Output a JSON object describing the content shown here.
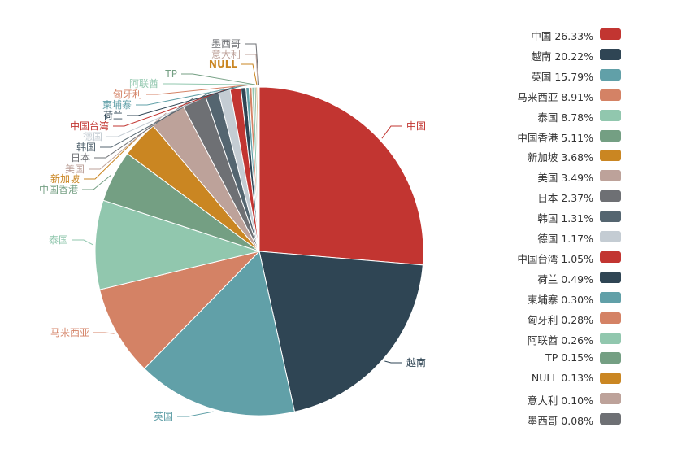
{
  "chart_data": {
    "type": "pie",
    "title": "",
    "slices": [
      {
        "name": "中国",
        "value": 26.33,
        "label": "中国 26.33%",
        "color": "#c23531"
      },
      {
        "name": "越南",
        "value": 20.22,
        "label": "越南 20.22%",
        "color": "#2f4554"
      },
      {
        "name": "英国",
        "value": 15.79,
        "label": "英国 15.79%",
        "color": "#61a0a8"
      },
      {
        "name": "马来西亚",
        "value": 8.91,
        "label": "马来西亚 8.91%",
        "color": "#d48265"
      },
      {
        "name": "泰国",
        "value": 8.78,
        "label": "泰国 8.78%",
        "color": "#91c7ae"
      },
      {
        "name": "中国香港",
        "value": 5.11,
        "label": "中国香港 5.11%",
        "color": "#749f83"
      },
      {
        "name": "新加坡",
        "value": 3.68,
        "label": "新加坡 3.68%",
        "color": "#ca8622"
      },
      {
        "name": "美国",
        "value": 3.49,
        "label": "美国 3.49%",
        "color": "#bda29a"
      },
      {
        "name": "日本",
        "value": 2.37,
        "label": "日本 2.37%",
        "color": "#6e7074"
      },
      {
        "name": "韩国",
        "value": 1.31,
        "label": "韩国 1.31%",
        "color": "#546570"
      },
      {
        "name": "德国",
        "value": 1.17,
        "label": "德国 1.17%",
        "color": "#c4ccd3"
      },
      {
        "name": "中国台湾",
        "value": 1.05,
        "label": "中国台湾 1.05%",
        "color": "#c23531"
      },
      {
        "name": "荷兰",
        "value": 0.49,
        "label": "荷兰 0.49%",
        "color": "#2f4554"
      },
      {
        "name": "柬埔寨",
        "value": 0.3,
        "label": "柬埔寨 0.30%",
        "color": "#61a0a8"
      },
      {
        "name": "匈牙利",
        "value": 0.28,
        "label": "匈牙利 0.28%",
        "color": "#d48265"
      },
      {
        "name": "阿联酋",
        "value": 0.26,
        "label": "阿联酋 0.26%",
        "color": "#91c7ae"
      },
      {
        "name": "TP",
        "value": 0.15,
        "label": "TP 0.15%",
        "color": "#749f83"
      },
      {
        "name": "NULL",
        "value": 0.13,
        "label": "NULL 0.13%",
        "color": "#ca8622"
      },
      {
        "name": "意大利",
        "value": 0.1,
        "label": "意大利 0.10%",
        "color": "#bda29a"
      },
      {
        "name": "墨西哥",
        "value": 0.08,
        "label": "墨西哥 0.08%",
        "color": "#6e7074"
      }
    ],
    "legend_position": "right",
    "start_angle_deg": 90,
    "direction": "clockwise"
  }
}
